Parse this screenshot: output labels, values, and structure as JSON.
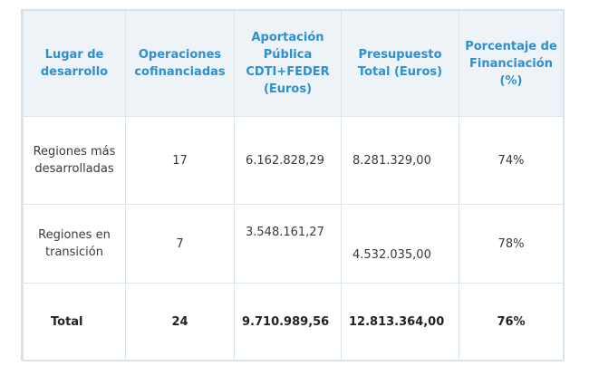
{
  "headers": [
    "Lugar de desarrollo",
    "Operaciones cofinanciadas",
    "Aportación Pública CDTI+FEDER (Euros)",
    "Presupuesto Total (Euros)",
    "Porcentaje de Financiación (%)"
  ],
  "rows": [
    {
      "lugar": "Regiones más desarrolladas",
      "operaciones": "17",
      "aportacion": "6.162.828,29",
      "presupuesto": "8.281.329,00",
      "porcentaje": "74%"
    },
    {
      "lugar": "Regiones en transición",
      "operaciones": "7",
      "aportacion": "3.548.161,27",
      "presupuesto": "4.532.035,00",
      "porcentaje": "78%"
    }
  ],
  "total": {
    "lugar": "Total",
    "operaciones": "24",
    "aportacion": "9.710.989,56",
    "presupuesto": "12.813.364,00",
    "porcentaje": "76%"
  }
}
